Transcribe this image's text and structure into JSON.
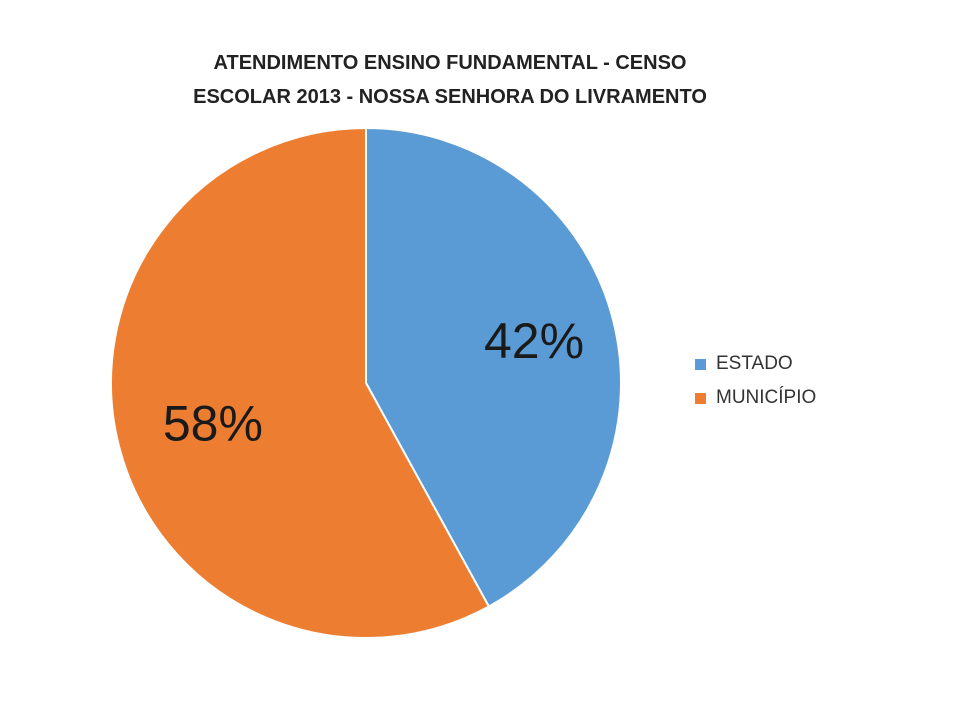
{
  "chart_data": {
    "type": "pie",
    "title": "ATENDIMENTO ENSINO FUNDAMENTAL -  CENSO ESCOLAR 2013 - NOSSA SENHORA DO LIVRAMENTO",
    "title_lines": [
      "ATENDIMENTO ENSINO FUNDAMENTAL -  CENSO",
      "ESCOLAR 2013 - NOSSA SENHORA DO LIVRAMENTO"
    ],
    "categories": [
      "ESTADO",
      "MUNICÍPIO"
    ],
    "values": [
      42,
      58
    ],
    "labels": [
      "42%",
      "58%"
    ],
    "colors": [
      "#5B9BD5",
      "#ED7D31"
    ],
    "legend_position": "right"
  }
}
